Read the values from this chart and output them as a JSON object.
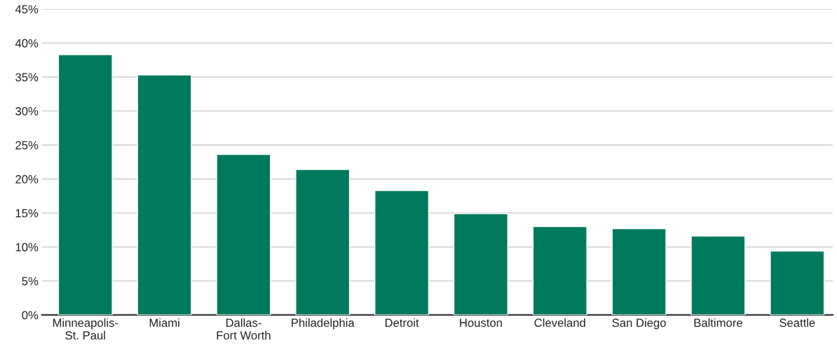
{
  "chart_data": {
    "type": "bar",
    "categories": [
      "Minneapolis-\nSt. Paul",
      "Miami",
      "Dallas-\nFort Worth",
      "Philadelphia",
      "Detroit",
      "Houston",
      "Cleveland",
      "San Diego",
      "Baltimore",
      "Seattle"
    ],
    "values": [
      38.3,
      35.3,
      23.6,
      21.4,
      18.3,
      14.9,
      13.0,
      12.7,
      11.6,
      9.4
    ],
    "color": "#007a5e",
    "ylim": [
      0,
      45
    ],
    "yticks": [
      {
        "value": 0,
        "label": "0%"
      },
      {
        "value": 5,
        "label": "5%"
      },
      {
        "value": 10,
        "label": "10%"
      },
      {
        "value": 15,
        "label": "15%"
      },
      {
        "value": 20,
        "label": "20%"
      },
      {
        "value": 25,
        "label": "25%"
      },
      {
        "value": 30,
        "label": "30%"
      },
      {
        "value": 35,
        "label": "35%"
      },
      {
        "value": 40,
        "label": "40%"
      },
      {
        "value": 45,
        "label": "45%"
      }
    ],
    "grid": "y"
  }
}
